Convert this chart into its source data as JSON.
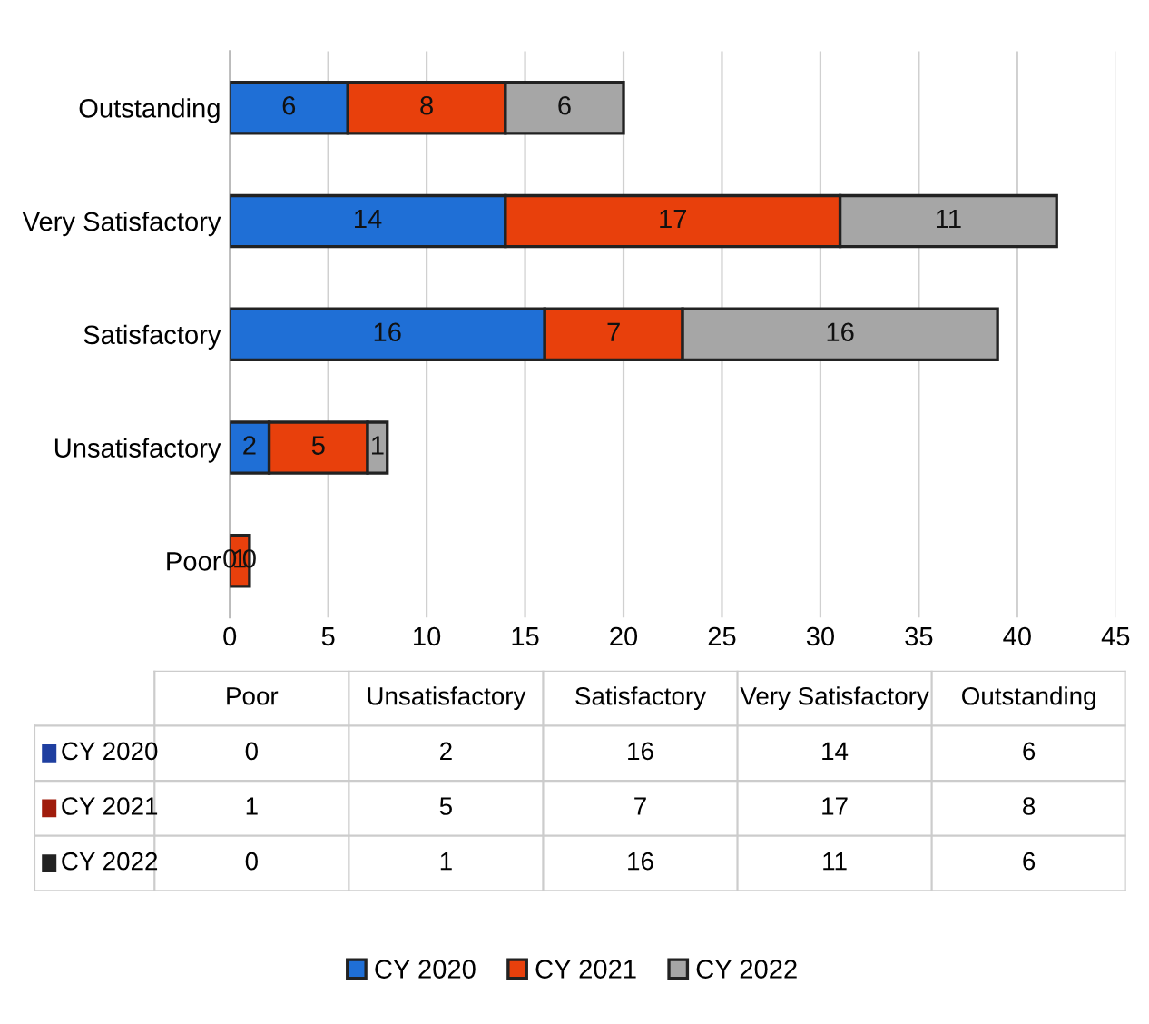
{
  "chart_data": [
    {
      "type": "bar",
      "orientation": "horizontal",
      "stacked": true,
      "categories": [
        "Outstanding",
        "Very Satisfactory",
        "Satisfactory",
        "Unsatisfactory",
        "Poor"
      ],
      "series": [
        {
          "name": "CY 2020",
          "color": "#1f6fd6",
          "values": [
            6,
            14,
            16,
            2,
            0
          ]
        },
        {
          "name": "CY 2021",
          "color": "#e8400c",
          "values": [
            8,
            17,
            7,
            5,
            1
          ]
        },
        {
          "name": "CY 2022",
          "color": "#a6a6a6",
          "values": [
            6,
            11,
            16,
            1,
            0
          ]
        }
      ],
      "xlim": [
        0,
        45
      ],
      "xticks": [
        0,
        5,
        10,
        15,
        20,
        25,
        30,
        35,
        40,
        45
      ],
      "grid": "x",
      "data_labels": true,
      "legend": "bottom"
    },
    {
      "type": "other",
      "categories": [
        "Poor",
        "Unsatisfactory",
        "Satisfactory",
        "Very Satisfactory",
        "Outstanding"
      ],
      "series": [
        {
          "name": "CY 2020",
          "color": "#1f3fa0",
          "values": [
            0,
            2,
            16,
            14,
            6
          ]
        },
        {
          "name": "CY 2021",
          "color": "#a01c0c",
          "values": [
            1,
            5,
            7,
            17,
            8
          ]
        },
        {
          "name": "CY 2022",
          "color": "#222222",
          "values": [
            0,
            1,
            16,
            11,
            6
          ]
        }
      ],
      "data_labels": true
    }
  ]
}
